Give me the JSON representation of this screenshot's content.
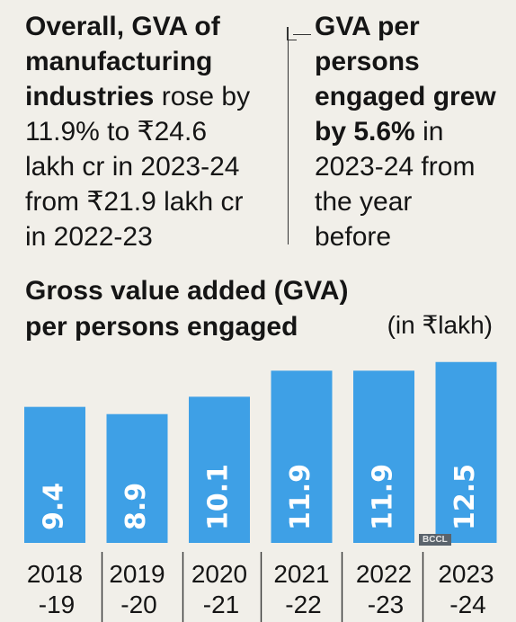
{
  "left_panel": {
    "line1": "Overall, GVA of",
    "line2": "manufacturing",
    "line3_bold": "industries",
    "line3_rest": " rose by",
    "line4": "11.9% to ₹24.6",
    "line5": "lakh cr in 2023-24",
    "line6": "from ₹21.9 lakh cr",
    "line7": "in 2022-23"
  },
  "right_panel": {
    "line1": "GVA per",
    "line2": "persons",
    "line3": "engaged grew",
    "line4_bold": "by 5.6%",
    "line4_rest": " in",
    "line5": "2023-24 from",
    "line6": "the year",
    "line7": "before"
  },
  "chart_title_line1": "Gross value added (GVA)",
  "chart_title_line2": "per persons engaged",
  "unit_label": "(in ₹lakh)",
  "credit": "BCCL",
  "colors": {
    "bar": "#3ea0e6",
    "background": "#f1efe9",
    "text": "#151515"
  },
  "chart_data": {
    "type": "bar",
    "title": "Gross value added (GVA) per persons engaged",
    "ylabel": "(in ₹lakh)",
    "categories": [
      "2018-19",
      "2019-20",
      "2020-21",
      "2021-22",
      "2022-23",
      "2023-24"
    ],
    "category_labels": [
      [
        "2018",
        "-19"
      ],
      [
        "2019",
        "-20"
      ],
      [
        "2020",
        "-21"
      ],
      [
        "2021",
        "-22"
      ],
      [
        "2022",
        "-23"
      ],
      [
        "2023",
        "-24"
      ]
    ],
    "values": [
      9.4,
      8.9,
      10.1,
      11.9,
      11.9,
      12.5
    ],
    "value_labels": [
      "9.4",
      "8.9",
      "10.1",
      "11.9",
      "11.9",
      "12.5"
    ],
    "grid": false,
    "legend": "none"
  }
}
